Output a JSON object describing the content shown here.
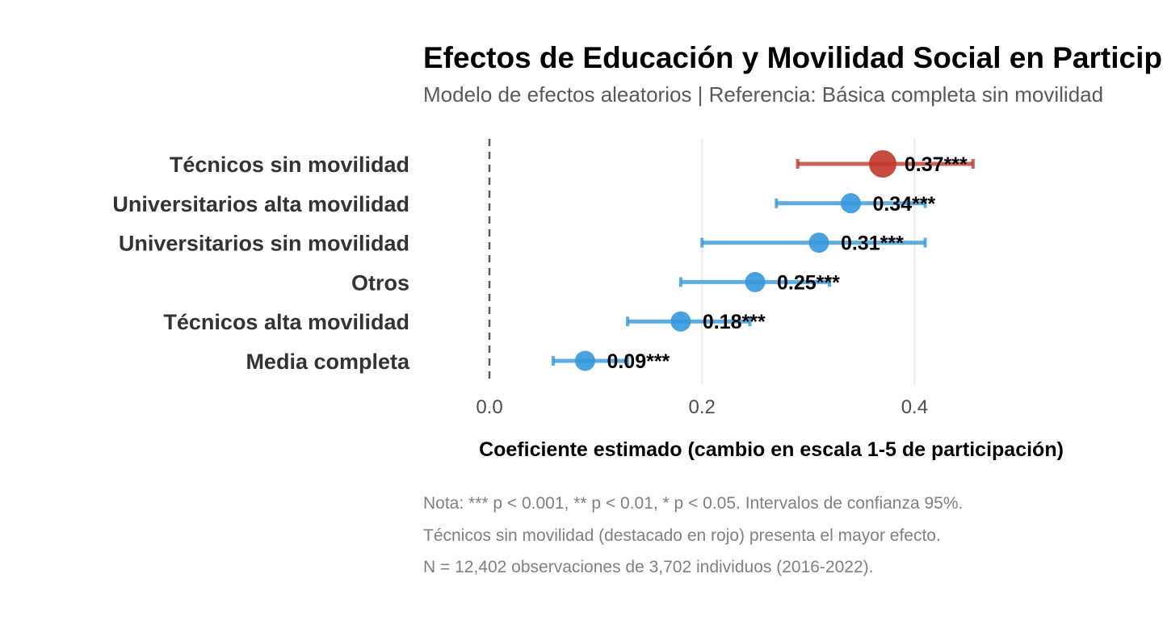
{
  "chart_data": {
    "type": "forest",
    "title": "Efectos de Educación y Movilidad Social en Participación",
    "subtitle": "Modelo de efectos aleatorios | Referencia: Básica completa sin movilidad",
    "xlabel": "Coeficiente estimado (cambio en escala 1-5 de participación)",
    "ylabel": "",
    "xlim": [
      0,
      0.5
    ],
    "x_ticks": [
      "0.0",
      "0.2",
      "0.4"
    ],
    "x_tick_values": [
      0.0,
      0.2,
      0.4
    ],
    "reference_line": 0,
    "grid": "vertical-major",
    "categories": [
      "Técnicos sin movilidad",
      "Universitarios alta movilidad",
      "Universitarios sin movilidad",
      "Otros",
      "Técnicos alta movilidad",
      "Media completa"
    ],
    "estimates": [
      0.37,
      0.34,
      0.31,
      0.25,
      0.18,
      0.09
    ],
    "ci_low": [
      0.29,
      0.27,
      0.2,
      0.18,
      0.13,
      0.06
    ],
    "ci_high": [
      0.455,
      0.41,
      0.41,
      0.32,
      0.245,
      0.13
    ],
    "labels": [
      "0.37***",
      "0.34***",
      "0.31***",
      "0.25***",
      "0.18***",
      "0.09***"
    ],
    "highlight": [
      true,
      false,
      false,
      false,
      false,
      false
    ],
    "colors": {
      "highlight": "#C0392B",
      "default": "#3498DB",
      "reference": "#595959",
      "grid": "#EBEBEB"
    },
    "notes": [
      "Nota: *** p < 0.001, ** p < 0.01, * p < 0.05. Intervalos de confianza 95%.",
      "Técnicos sin movilidad (destacado en rojo) presenta el mayor efecto.",
      "N = 12,402 observaciones de 3,702 individuos (2016-2022)."
    ]
  }
}
